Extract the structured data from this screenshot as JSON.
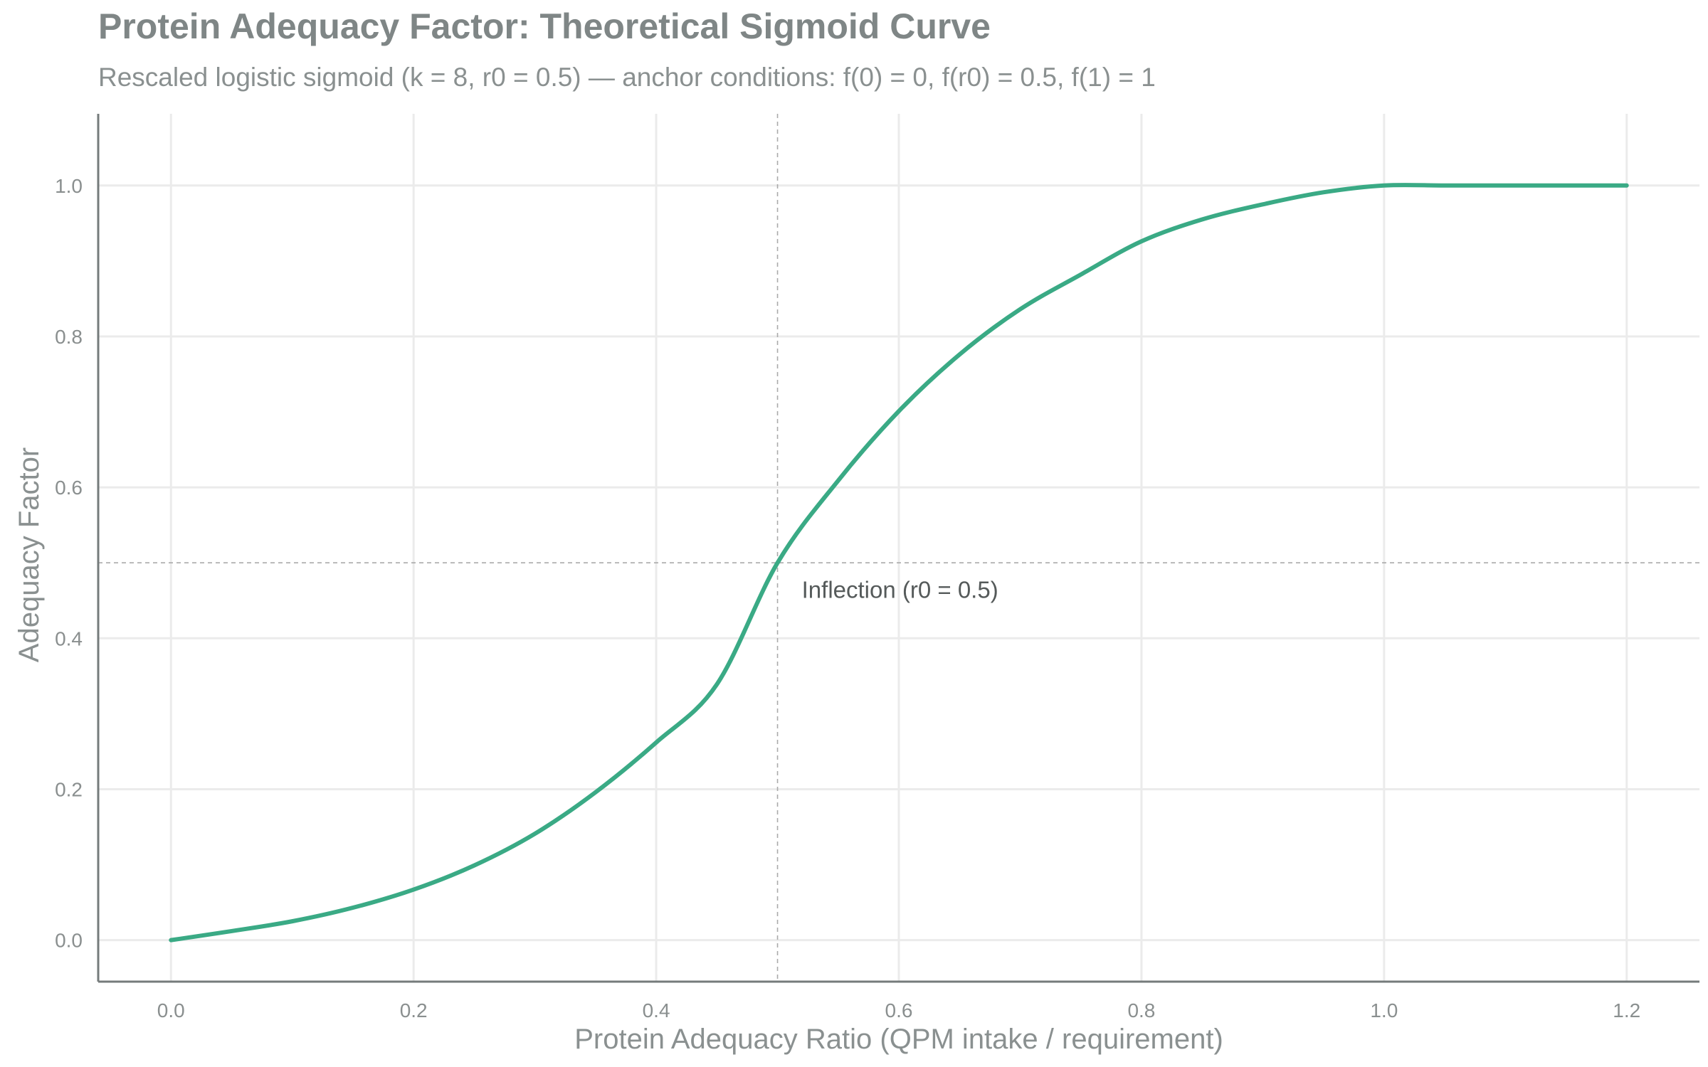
{
  "chart_data": {
    "type": "line",
    "title": "Protein Adequacy Factor: Theoretical Sigmoid Curve",
    "subtitle": "Rescaled logistic sigmoid (k = 8, r0 = 0.5) — anchor conditions: f(0) = 0, f(r0) = 0.5, f(1) = 1",
    "xlabel": "Protein Adequacy Ratio (QPM intake / requirement)",
    "ylabel": "Adequacy Factor",
    "xlim": [
      -0.06,
      1.26
    ],
    "ylim": [
      -0.055,
      1.095
    ],
    "x_ticks": [
      0.0,
      0.2,
      0.4,
      0.6,
      0.8,
      1.0,
      1.2
    ],
    "x_tick_labels": [
      "0.0",
      "0.2",
      "0.4",
      "0.6",
      "0.8",
      "1.0",
      "1.2"
    ],
    "y_ticks": [
      0.0,
      0.2,
      0.4,
      0.6,
      0.8,
      1.0
    ],
    "y_tick_labels": [
      "0.0",
      "0.2",
      "0.4",
      "0.6",
      "0.8",
      "1.0"
    ],
    "grid": true,
    "series": [
      {
        "color": "#3aaa85",
        "x": [
          0.0,
          0.05,
          0.1,
          0.15,
          0.2,
          0.25,
          0.3,
          0.35,
          0.4,
          0.45,
          0.5,
          0.55,
          0.6,
          0.65,
          0.7,
          0.75,
          0.8,
          0.85,
          0.9,
          0.95,
          1.0,
          1.05,
          1.1,
          1.15,
          1.2
        ],
        "y": [
          0.0,
          0.012,
          0.025,
          0.043,
          0.067,
          0.099,
          0.141,
          0.196,
          0.262,
          0.339,
          0.5,
          0.609,
          0.701,
          0.776,
          0.836,
          0.882,
          0.926,
          0.955,
          0.975,
          0.991,
          1.0,
          1.0,
          1.0,
          1.0,
          1.0
        ]
      }
    ],
    "reference_lines": {
      "vertical_x": 0.5,
      "horizontal_y": 0.5,
      "color": "#aaaaaa"
    },
    "annotation": {
      "text": "Inflection (r0 = 0.5)",
      "x": 0.52,
      "y": 0.465
    }
  }
}
